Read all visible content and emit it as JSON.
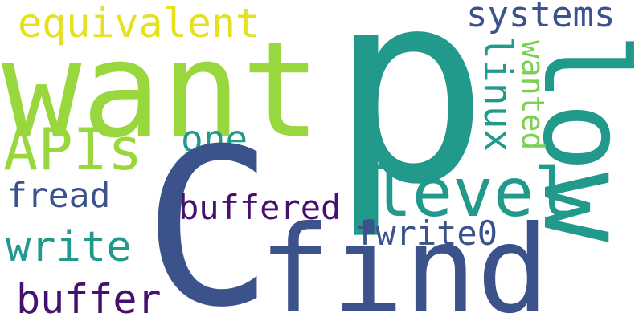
{
  "words": {
    "p": {
      "text": "p",
      "color": "#21998b"
    },
    "want": {
      "text": "want",
      "color": "#98d83e"
    },
    "c": {
      "text": "C",
      "color": "#3b528b"
    },
    "find": {
      "text": "find",
      "color": "#3b528b"
    },
    "low": {
      "text": "low",
      "color": "#21998b"
    },
    "level": {
      "text": "level",
      "color": "#21998b"
    },
    "apis": {
      "text": "APIs",
      "color": "#98d83e"
    },
    "equivalent": {
      "text": "equivalent",
      "color": "#e6e11f"
    },
    "systems": {
      "text": "systems",
      "color": "#3b528b"
    },
    "linux": {
      "text": "linux",
      "color": "#21998b"
    },
    "wanted": {
      "text": "wanted",
      "color": "#7ad151"
    },
    "one": {
      "text": "one",
      "color": "#21998b"
    },
    "fread": {
      "text": "fread",
      "color": "#3b528b"
    },
    "buffered": {
      "text": "buffered",
      "color": "#46116e"
    },
    "write": {
      "text": "write",
      "color": "#21998b"
    },
    "fwrite0": {
      "text": "fwrite0",
      "color": "#3b528b"
    },
    "buffer": {
      "text": "buffer",
      "color": "#46116e"
    }
  }
}
